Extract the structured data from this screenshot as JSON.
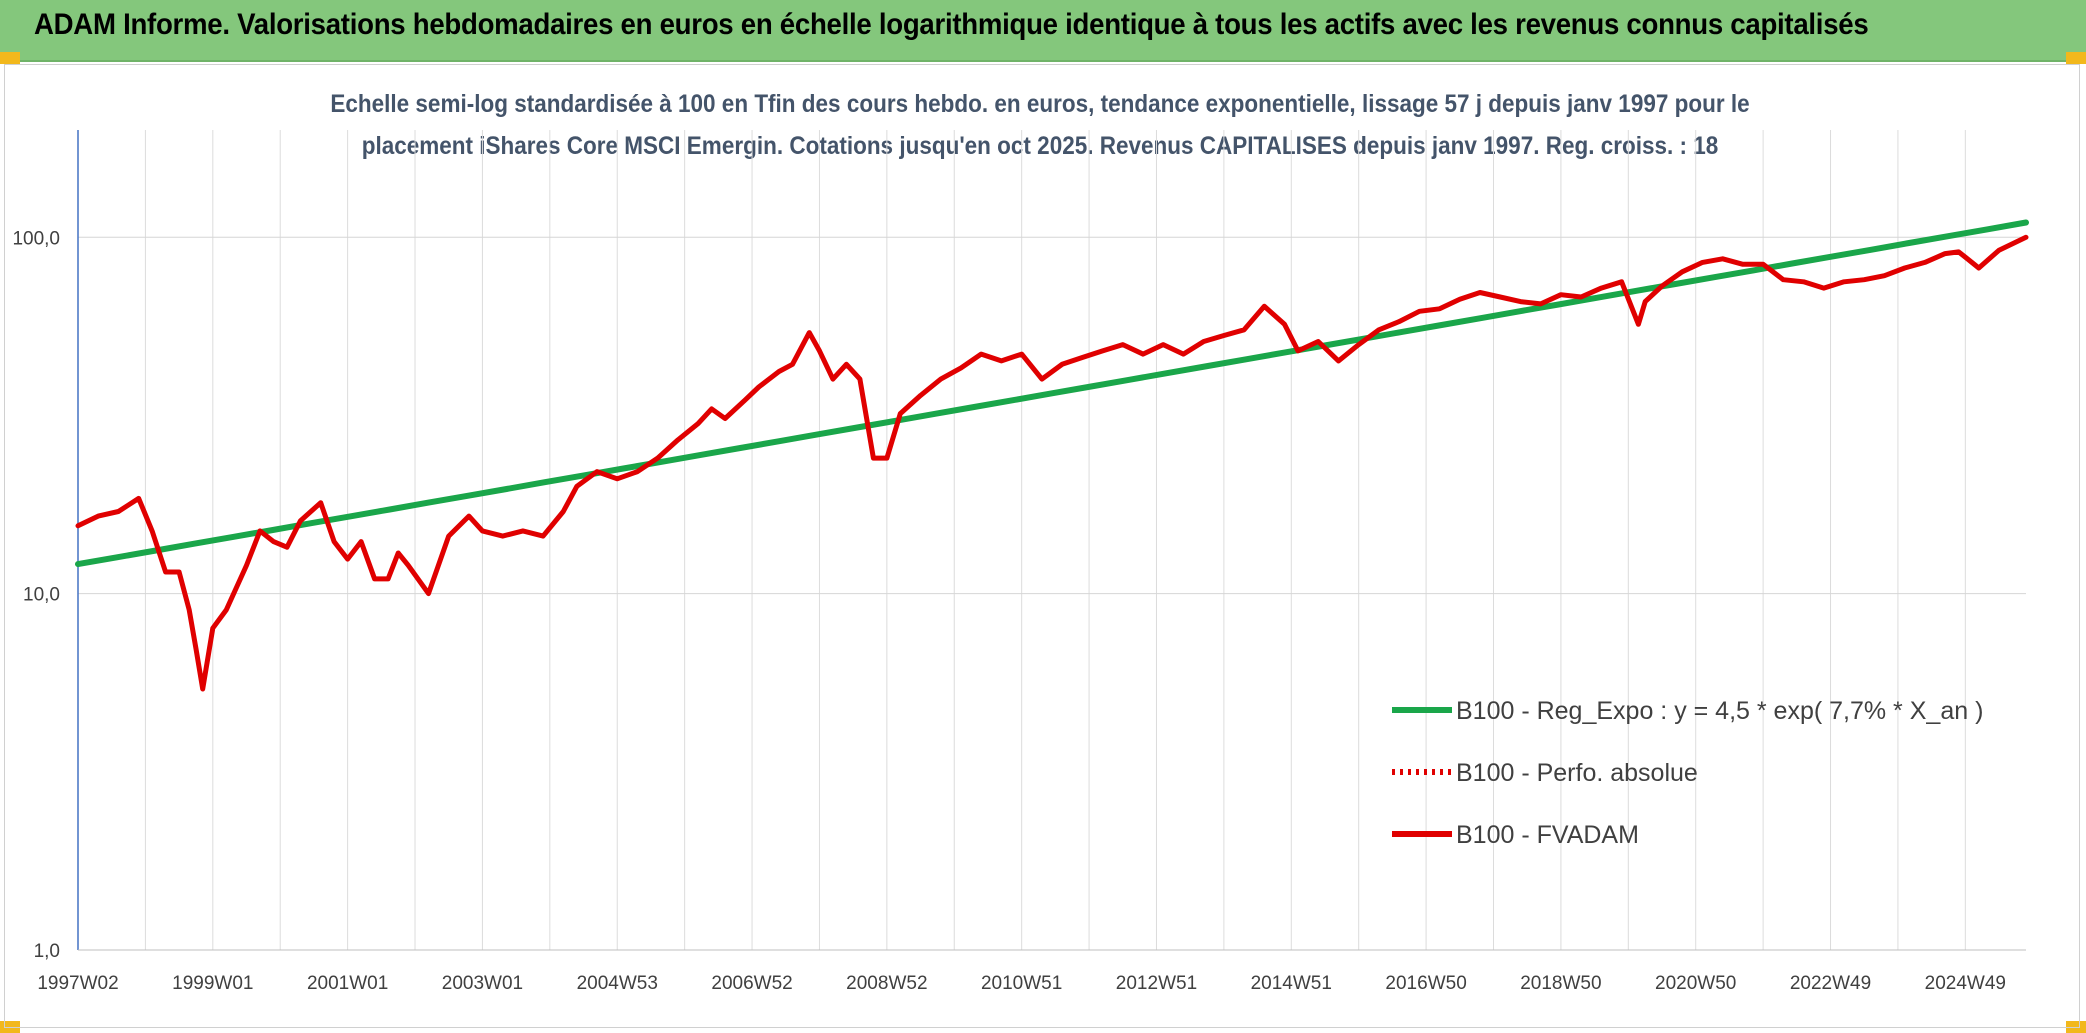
{
  "header": {
    "title": "ADAM Informe. Valorisations hebdomadaires en euros en échelle logarithmique identique à tous les actifs avec les revenus connus capitalisés"
  },
  "chart_data": {
    "type": "line",
    "title": "",
    "subtitle_line1": "Echelle semi-log standardisée à 100 en Tfin des cours hebdo. en euros, tendance exponentielle, lissage 57 j depuis janv 1997 pour le",
    "subtitle_line2": "placement iShares Core MSCI Emergin. Cotations jusqu'en oct 2025. Revenus CAPITALISES depuis janv 1997. Reg. croiss. : 18",
    "xlabel": "",
    "ylabel": "",
    "y_scale": "log",
    "ylim": [
      1,
      200
    ],
    "xlim": [
      1997.0,
      2025.9
    ],
    "grid": true,
    "legend_position": "right-center",
    "y_ticks": [
      {
        "value": 1,
        "label": "1,0"
      },
      {
        "value": 10,
        "label": "10,0"
      },
      {
        "value": 100,
        "label": "100,0"
      }
    ],
    "x_ticks": [
      {
        "value": 1997.0,
        "label": "1997W02"
      },
      {
        "value": 1999.0,
        "label": "1999W01"
      },
      {
        "value": 2001.0,
        "label": "2001W01"
      },
      {
        "value": 2003.0,
        "label": "2003W01"
      },
      {
        "value": 2005.0,
        "label": "2004W53"
      },
      {
        "value": 2007.0,
        "label": "2006W52"
      },
      {
        "value": 2009.0,
        "label": "2008W52"
      },
      {
        "value": 2011.0,
        "label": "2010W51"
      },
      {
        "value": 2013.0,
        "label": "2012W51"
      },
      {
        "value": 2015.0,
        "label": "2014W51"
      },
      {
        "value": 2017.0,
        "label": "2016W50"
      },
      {
        "value": 2019.0,
        "label": "2018W50"
      },
      {
        "value": 2021.0,
        "label": "2020W50"
      },
      {
        "value": 2023.0,
        "label": "2022W49"
      },
      {
        "value": 2025.0,
        "label": "2024W49"
      }
    ],
    "series": [
      {
        "name": "B100 - Reg_Expo : y = 4,5 * exp( 7,7% *  X_an )",
        "color": "#1aa64a",
        "style": "solid",
        "x": [
          1997.0,
          2025.9
        ],
        "y": [
          12.1,
          110
        ]
      },
      {
        "name": "B100 - Perfo. absolue",
        "color": "#e00000",
        "style": "dotted",
        "x": [],
        "y": []
      },
      {
        "name": "B100 - FVADAM",
        "color": "#e00000",
        "style": "solid",
        "x": [
          1997.0,
          1997.3,
          1997.6,
          1997.9,
          1998.1,
          1998.3,
          1998.5,
          1998.65,
          1998.75,
          1998.85,
          1999.0,
          1999.2,
          1999.5,
          1999.7,
          1999.9,
          2000.1,
          2000.3,
          2000.6,
          2000.8,
          2001.0,
          2001.2,
          2001.4,
          2001.6,
          2001.75,
          2001.9,
          2002.2,
          2002.5,
          2002.8,
          2003.0,
          2003.3,
          2003.6,
          2003.9,
          2004.2,
          2004.4,
          2004.7,
          2005.0,
          2005.3,
          2005.6,
          2005.9,
          2006.2,
          2006.4,
          2006.6,
          2006.9,
          2007.1,
          2007.4,
          2007.6,
          2007.85,
          2008.0,
          2008.2,
          2008.4,
          2008.6,
          2008.8,
          2009.0,
          2009.2,
          2009.5,
          2009.8,
          2010.1,
          2010.4,
          2010.7,
          2011.0,
          2011.3,
          2011.6,
          2011.9,
          2012.2,
          2012.5,
          2012.8,
          2013.1,
          2013.4,
          2013.7,
          2014.0,
          2014.3,
          2014.6,
          2014.9,
          2015.1,
          2015.4,
          2015.7,
          2016.0,
          2016.3,
          2016.6,
          2016.9,
          2017.2,
          2017.5,
          2017.8,
          2018.1,
          2018.4,
          2018.7,
          2019.0,
          2019.3,
          2019.6,
          2019.9,
          2020.15,
          2020.25,
          2020.5,
          2020.8,
          2021.1,
          2021.4,
          2021.7,
          2022.0,
          2022.3,
          2022.6,
          2022.9,
          2023.2,
          2023.5,
          2023.8,
          2024.1,
          2024.4,
          2024.7,
          2024.9,
          2025.0,
          2025.2,
          2025.5,
          2025.9
        ],
        "y": [
          15.5,
          16.5,
          17,
          18.5,
          15,
          11.5,
          11.5,
          9,
          7,
          5.4,
          8,
          9,
          12,
          15,
          14,
          13.5,
          16,
          18,
          14,
          12.5,
          14,
          11,
          11,
          13,
          12,
          10,
          14.5,
          16.5,
          15,
          14.5,
          15,
          14.5,
          17,
          20,
          22,
          21,
          22,
          24,
          27,
          30,
          33,
          31,
          35,
          38,
          42,
          44,
          54,
          48,
          40,
          44,
          40,
          24,
          24,
          32,
          36,
          40,
          43,
          47,
          45,
          47,
          40,
          44,
          46,
          48,
          50,
          47,
          50,
          47,
          51,
          53,
          55,
          64,
          57,
          48,
          51,
          45,
          50,
          55,
          58,
          62,
          63,
          67,
          70,
          68,
          66,
          65,
          69,
          68,
          72,
          75,
          57,
          66,
          73,
          80,
          85,
          87,
          84,
          84,
          76,
          75,
          72,
          75,
          76,
          78,
          82,
          85,
          90,
          91,
          88,
          82,
          92,
          100
        ]
      }
    ]
  }
}
